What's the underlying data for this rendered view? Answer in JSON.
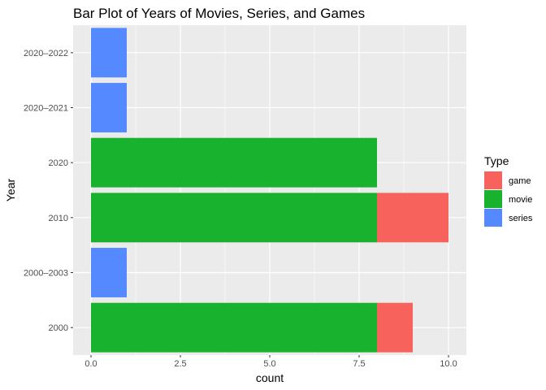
{
  "chart_data": {
    "type": "bar",
    "orientation": "horizontal",
    "stacked": true,
    "title": "Bar Plot of Years of Movies, Series, and Games",
    "xlabel": "count",
    "ylabel": "Year",
    "xlim": [
      0,
      10
    ],
    "x_ticks": [
      "0.0",
      "2.5",
      "5.0",
      "7.5",
      "10.0"
    ],
    "categories": [
      "2000",
      "2000–2003",
      "2010",
      "2020",
      "2020–2021",
      "2020–2022"
    ],
    "series": [
      {
        "name": "movie",
        "color": "#19b22f",
        "values": [
          8,
          0,
          8,
          8,
          0,
          0
        ]
      },
      {
        "name": "game",
        "color": "#f8625d",
        "values": [
          1,
          0,
          2,
          0,
          0,
          0
        ]
      },
      {
        "name": "series",
        "color": "#5589ff",
        "values": [
          0,
          1,
          0,
          0,
          1,
          1
        ]
      }
    ],
    "legend": {
      "title": "Type",
      "position": "right",
      "items": [
        "game",
        "movie",
        "series"
      ]
    },
    "grid": true
  }
}
